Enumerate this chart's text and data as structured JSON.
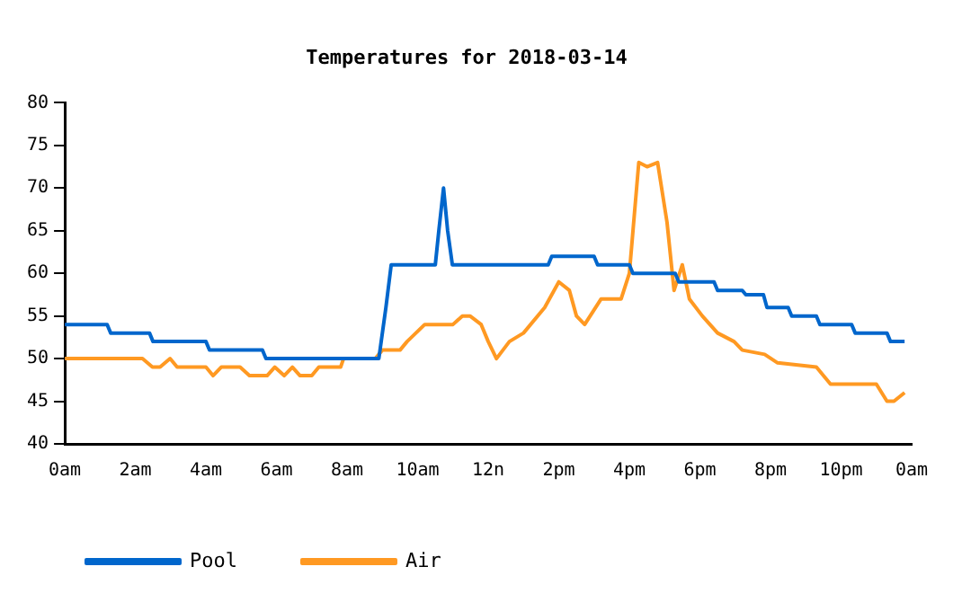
{
  "chart_data": {
    "type": "line",
    "title": "Temperatures for 2018-03-14",
    "xlim": [
      "2018-03-14T00:00",
      "2018-03-15T00:00"
    ],
    "xticks": [
      {
        "value": "2018-03-14T00:00",
        "label": "0am"
      },
      {
        "value": "2018-03-14T02:00",
        "label": "2am"
      },
      {
        "value": "2018-03-14T04:00",
        "label": "4am"
      },
      {
        "value": "2018-03-14T06:00",
        "label": "6am"
      },
      {
        "value": "2018-03-14T08:00",
        "label": "8am"
      },
      {
        "value": "2018-03-14T10:00",
        "label": "10am"
      },
      {
        "value": "2018-03-14T12:00",
        "label": "12n"
      },
      {
        "value": "2018-03-14T14:00",
        "label": "2pm"
      },
      {
        "value": "2018-03-14T16:00",
        "label": "4pm"
      },
      {
        "value": "2018-03-14T18:00",
        "label": "6pm"
      },
      {
        "value": "2018-03-14T20:00",
        "label": "8pm"
      },
      {
        "value": "2018-03-14T22:00",
        "label": "10pm"
      },
      {
        "value": "2018-03-15T00:00",
        "label": "0am"
      }
    ],
    "ylim": [
      40,
      80
    ],
    "yticks": [
      40,
      45,
      50,
      55,
      60,
      65,
      70,
      75,
      80
    ],
    "grid": false,
    "legend": "bottom left",
    "marker": "none",
    "line_style": "solid",
    "series": [
      {
        "name": "Pool",
        "color": "#0066cc",
        "x": [
          "2018-03-14T00:00",
          "2018-03-14T01:12",
          "2018-03-14T01:18",
          "2018-03-14T02:24",
          "2018-03-14T02:30",
          "2018-03-14T04:00",
          "2018-03-14T04:06",
          "2018-03-14T05:36",
          "2018-03-14T05:42",
          "2018-03-14T08:54",
          "2018-03-14T09:06",
          "2018-03-14T09:15",
          "2018-03-14T10:30",
          "2018-03-14T10:36",
          "2018-03-14T10:44",
          "2018-03-14T10:51",
          "2018-03-14T10:59",
          "2018-03-14T13:42",
          "2018-03-14T13:48",
          "2018-03-14T15:00",
          "2018-03-14T15:06",
          "2018-03-14T16:00",
          "2018-03-14T16:06",
          "2018-03-14T17:18",
          "2018-03-14T17:24",
          "2018-03-14T18:24",
          "2018-03-14T18:30",
          "2018-03-14T19:12",
          "2018-03-14T19:18",
          "2018-03-14T19:48",
          "2018-03-14T19:54",
          "2018-03-14T20:30",
          "2018-03-14T20:36",
          "2018-03-14T21:18",
          "2018-03-14T21:24",
          "2018-03-14T22:18",
          "2018-03-14T22:24",
          "2018-03-14T23:18",
          "2018-03-14T23:24",
          "2018-03-14T23:48"
        ],
        "values": [
          54,
          54,
          53,
          53,
          52,
          52,
          51,
          51,
          50,
          50,
          56,
          61,
          61,
          65,
          70,
          65,
          61,
          61,
          62,
          62,
          61,
          61,
          60,
          60,
          59,
          59,
          58,
          58,
          57.5,
          57.5,
          56,
          56,
          55,
          55,
          54,
          54,
          53,
          53,
          52,
          52
        ]
      },
      {
        "name": "Air",
        "color": "#ff9922",
        "x": [
          "2018-03-14T00:00",
          "2018-03-14T02:12",
          "2018-03-14T02:29",
          "2018-03-14T02:42",
          "2018-03-14T02:59",
          "2018-03-14T03:11",
          "2018-03-14T04:00",
          "2018-03-14T04:12",
          "2018-03-14T04:26",
          "2018-03-14T04:58",
          "2018-03-14T05:14",
          "2018-03-14T05:44",
          "2018-03-14T05:57",
          "2018-03-14T06:13",
          "2018-03-14T06:27",
          "2018-03-14T06:40",
          "2018-03-14T07:00",
          "2018-03-14T07:12",
          "2018-03-14T07:49",
          "2018-03-14T07:54",
          "2018-03-14T08:48",
          "2018-03-14T09:00",
          "2018-03-14T09:30",
          "2018-03-14T09:42",
          "2018-03-14T10:12",
          "2018-03-14T11:00",
          "2018-03-14T11:16",
          "2018-03-14T11:29",
          "2018-03-14T11:48",
          "2018-03-14T12:00",
          "2018-03-14T12:14",
          "2018-03-14T12:36",
          "2018-03-14T13:00",
          "2018-03-14T13:36",
          "2018-03-14T14:00",
          "2018-03-14T14:18",
          "2018-03-14T14:30",
          "2018-03-14T14:44",
          "2018-03-14T15:12",
          "2018-03-14T15:46",
          "2018-03-14T16:00",
          "2018-03-14T16:16",
          "2018-03-14T16:30",
          "2018-03-14T16:48",
          "2018-03-14T17:04",
          "2018-03-14T17:16",
          "2018-03-14T17:30",
          "2018-03-14T17:42",
          "2018-03-14T18:04",
          "2018-03-14T18:30",
          "2018-03-14T18:58",
          "2018-03-14T19:12",
          "2018-03-14T19:50",
          "2018-03-14T20:12",
          "2018-03-14T21:18",
          "2018-03-14T21:42",
          "2018-03-14T23:00",
          "2018-03-14T23:18",
          "2018-03-14T23:30",
          "2018-03-14T23:48"
        ],
        "values": [
          50,
          50,
          49,
          49,
          50,
          49,
          49,
          48,
          49,
          49,
          48,
          48,
          49,
          48,
          49,
          48,
          48,
          49,
          49,
          50,
          50,
          51,
          51,
          52,
          54,
          54,
          55,
          55,
          54,
          52,
          50,
          52,
          53,
          56,
          59,
          58,
          55,
          54,
          57,
          57,
          60,
          73,
          72.5,
          73,
          66,
          58,
          61,
          57,
          55,
          53,
          52,
          51,
          50.5,
          49.5,
          49,
          47,
          47,
          45,
          45,
          46
        ]
      }
    ]
  }
}
